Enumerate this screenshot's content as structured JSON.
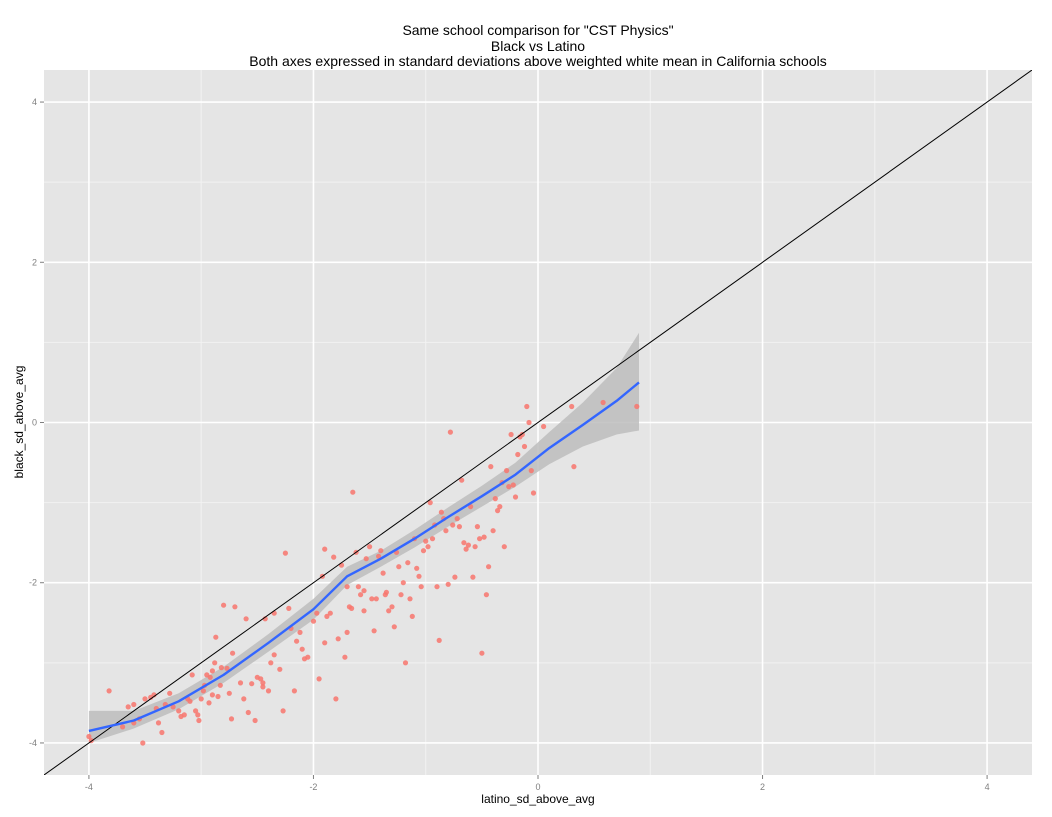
{
  "chart_data": {
    "type": "scatter",
    "title_lines": [
      "Same school comparison for \"CST Physics\"",
      "Black vs Latino",
      "Both axes expressed in standard deviations above weighted white mean in California schools"
    ],
    "xlabel": "latino_sd_above_avg",
    "ylabel": "black_sd_above_avg",
    "xlim": [
      -4.4,
      4.4
    ],
    "ylim": [
      -4.4,
      4.4
    ],
    "x_ticks": [
      -4,
      -2,
      0,
      2,
      4
    ],
    "y_ticks": [
      -4,
      -2,
      0,
      2,
      4
    ],
    "x_tick_labels": [
      "-4",
      "-2",
      "0",
      "2",
      "4"
    ],
    "y_tick_labels": [
      "-4",
      "-2",
      "0",
      "2",
      "4"
    ],
    "grid": true,
    "colors": {
      "panel": "#e5e5e5",
      "grid_major": "#ffffff",
      "grid_minor": "#f2f2f2",
      "points": "#f8766d",
      "smooth": "#3366ff",
      "ribbon": "#bdbdbd",
      "reference": "#000000"
    },
    "reference_line": {
      "slope": 1,
      "intercept": 0
    },
    "points": [
      [
        -4.0,
        -3.92
      ],
      [
        -3.98,
        -3.97
      ],
      [
        -3.82,
        -3.35
      ],
      [
        -3.7,
        -3.8
      ],
      [
        -3.65,
        -3.55
      ],
      [
        -3.6,
        -3.52
      ],
      [
        -3.55,
        -3.7
      ],
      [
        -3.52,
        -4.0
      ],
      [
        -3.5,
        -3.45
      ],
      [
        -3.45,
        -3.43
      ],
      [
        -3.42,
        -3.4
      ],
      [
        -3.4,
        -3.57
      ],
      [
        -3.38,
        -3.75
      ],
      [
        -3.35,
        -3.87
      ],
      [
        -3.32,
        -3.52
      ],
      [
        -3.28,
        -3.38
      ],
      [
        -3.25,
        -3.55
      ],
      [
        -3.2,
        -3.6
      ],
      [
        -3.18,
        -3.67
      ],
      [
        -3.15,
        -3.65
      ],
      [
        -3.12,
        -3.45
      ],
      [
        -3.1,
        -3.48
      ],
      [
        -3.08,
        -3.15
      ],
      [
        -3.05,
        -3.6
      ],
      [
        -3.03,
        -3.65
      ],
      [
        -3.02,
        -3.72
      ],
      [
        -3.0,
        -3.45
      ],
      [
        -2.98,
        -3.35
      ],
      [
        -2.97,
        -3.28
      ],
      [
        -2.95,
        -3.15
      ],
      [
        -2.93,
        -3.5
      ],
      [
        -2.92,
        -3.18
      ],
      [
        -2.9,
        -3.1
      ],
      [
        -2.88,
        -3.0
      ],
      [
        -2.87,
        -2.68
      ],
      [
        -2.85,
        -3.42
      ],
      [
        -2.83,
        -3.28
      ],
      [
        -2.82,
        -3.06
      ],
      [
        -2.8,
        -2.28
      ],
      [
        -2.77,
        -3.07
      ],
      [
        -2.75,
        -3.38
      ],
      [
        -2.73,
        -3.7
      ],
      [
        -2.72,
        -2.88
      ],
      [
        -2.7,
        -2.3
      ],
      [
        -2.65,
        -3.25
      ],
      [
        -2.62,
        -3.45
      ],
      [
        -2.58,
        -3.62
      ],
      [
        -2.55,
        -3.26
      ],
      [
        -2.52,
        -3.72
      ],
      [
        -2.5,
        -3.18
      ],
      [
        -2.47,
        -3.2
      ],
      [
        -2.45,
        -3.25
      ],
      [
        -2.43,
        -2.45
      ],
      [
        -2.4,
        -3.35
      ],
      [
        -2.38,
        -3.0
      ],
      [
        -2.35,
        -2.38
      ],
      [
        -2.3,
        -3.08
      ],
      [
        -2.27,
        -3.6
      ],
      [
        -2.25,
        -1.63
      ],
      [
        -2.22,
        -2.32
      ],
      [
        -2.2,
        -2.57
      ],
      [
        -2.17,
        -3.35
      ],
      [
        -2.15,
        -2.73
      ],
      [
        -2.12,
        -2.62
      ],
      [
        -2.1,
        -2.83
      ],
      [
        -2.08,
        -2.95
      ],
      [
        -2.05,
        -2.93
      ],
      [
        -2.0,
        -2.48
      ],
      [
        -1.97,
        -2.38
      ],
      [
        -1.95,
        -3.2
      ],
      [
        -1.92,
        -1.92
      ],
      [
        -1.9,
        -2.75
      ],
      [
        -1.88,
        -2.42
      ],
      [
        -1.85,
        -2.38
      ],
      [
        -1.82,
        -1.68
      ],
      [
        -1.8,
        -3.45
      ],
      [
        -1.78,
        -2.7
      ],
      [
        -1.75,
        -1.78
      ],
      [
        -1.72,
        -2.93
      ],
      [
        -1.7,
        -2.62
      ],
      [
        -1.68,
        -2.3
      ],
      [
        -1.66,
        -2.32
      ],
      [
        -1.65,
        -0.87
      ],
      [
        -1.62,
        -1.62
      ],
      [
        -1.6,
        -2.05
      ],
      [
        -1.58,
        -2.15
      ],
      [
        -1.55,
        -2.1
      ],
      [
        -1.53,
        -1.7
      ],
      [
        -1.5,
        -1.55
      ],
      [
        -1.48,
        -2.2
      ],
      [
        -1.46,
        -2.6
      ],
      [
        -1.44,
        -2.2
      ],
      [
        -1.42,
        -1.67
      ],
      [
        -1.4,
        -1.6
      ],
      [
        -1.38,
        -1.88
      ],
      [
        -1.36,
        -2.15
      ],
      [
        -1.35,
        -2.12
      ],
      [
        -1.33,
        -2.35
      ],
      [
        -1.3,
        -2.3
      ],
      [
        -1.28,
        -2.55
      ],
      [
        -1.26,
        -1.62
      ],
      [
        -1.24,
        -1.8
      ],
      [
        -1.22,
        -2.15
      ],
      [
        -1.2,
        -2.0
      ],
      [
        -1.18,
        -3.0
      ],
      [
        -1.16,
        -1.75
      ],
      [
        -1.14,
        -2.2
      ],
      [
        -1.12,
        -2.42
      ],
      [
        -1.1,
        -1.45
      ],
      [
        -1.08,
        -1.82
      ],
      [
        -1.06,
        -1.92
      ],
      [
        -1.04,
        -2.05
      ],
      [
        -1.02,
        -1.6
      ],
      [
        -1.0,
        -1.48
      ],
      [
        -0.98,
        -1.55
      ],
      [
        -0.96,
        -1.0
      ],
      [
        -0.94,
        -1.45
      ],
      [
        -0.92,
        -1.28
      ],
      [
        -0.9,
        -2.05
      ],
      [
        -0.88,
        -2.72
      ],
      [
        -0.86,
        -1.12
      ],
      [
        -0.84,
        -1.2
      ],
      [
        -0.82,
        -1.35
      ],
      [
        -0.8,
        -2.02
      ],
      [
        -0.78,
        -0.12
      ],
      [
        -0.76,
        -1.28
      ],
      [
        -0.74,
        -1.93
      ],
      [
        -0.72,
        -1.2
      ],
      [
        -0.7,
        -1.3
      ],
      [
        -0.68,
        -0.72
      ],
      [
        -0.66,
        -1.5
      ],
      [
        -0.64,
        -1.58
      ],
      [
        -0.62,
        -1.53
      ],
      [
        -0.6,
        -1.05
      ],
      [
        -0.58,
        -1.93
      ],
      [
        -0.56,
        -1.55
      ],
      [
        -0.54,
        -1.3
      ],
      [
        -0.52,
        -1.45
      ],
      [
        -0.5,
        -2.88
      ],
      [
        -0.48,
        -1.43
      ],
      [
        -0.46,
        -2.15
      ],
      [
        -0.44,
        -1.8
      ],
      [
        -0.42,
        -0.55
      ],
      [
        -0.4,
        -1.35
      ],
      [
        -0.38,
        -0.95
      ],
      [
        -0.36,
        -1.1
      ],
      [
        -0.34,
        -1.05
      ],
      [
        -0.32,
        -0.75
      ],
      [
        -0.3,
        -1.55
      ],
      [
        -0.28,
        -0.6
      ],
      [
        -0.26,
        -0.8
      ],
      [
        -0.24,
        -0.15
      ],
      [
        -0.22,
        -0.78
      ],
      [
        -0.2,
        -0.93
      ],
      [
        -0.18,
        -0.4
      ],
      [
        -0.16,
        -0.18
      ],
      [
        -0.14,
        -0.15
      ],
      [
        -0.12,
        -0.3
      ],
      [
        -0.1,
        0.2
      ],
      [
        -0.08,
        0.0
      ],
      [
        -0.06,
        -0.6
      ],
      [
        -0.04,
        -0.88
      ],
      [
        0.05,
        -0.05
      ],
      [
        0.3,
        0.2
      ],
      [
        0.32,
        -0.55
      ],
      [
        0.58,
        0.25
      ],
      [
        0.88,
        0.2
      ],
      [
        -3.6,
        -3.75
      ],
      [
        -2.45,
        -3.3
      ],
      [
        -1.7,
        -2.05
      ],
      [
        -2.6,
        -2.45
      ],
      [
        -2.9,
        -3.4
      ],
      [
        -1.55,
        -2.35
      ],
      [
        -2.35,
        -2.9
      ],
      [
        -1.9,
        -1.58
      ]
    ],
    "smooth": {
      "x": [
        -4.0,
        -3.6,
        -3.2,
        -2.8,
        -2.4,
        -2.0,
        -1.7,
        -1.4,
        -1.1,
        -0.8,
        -0.5,
        -0.2,
        0.1,
        0.4,
        0.7,
        0.9
      ],
      "y": [
        -3.85,
        -3.72,
        -3.48,
        -3.15,
        -2.75,
        -2.33,
        -1.92,
        -1.7,
        -1.45,
        -1.18,
        -0.92,
        -0.65,
        -0.32,
        -0.03,
        0.27,
        0.5
      ],
      "lower": [
        -4.0,
        -3.82,
        -3.58,
        -3.25,
        -2.86,
        -2.46,
        -2.03,
        -1.8,
        -1.56,
        -1.3,
        -1.05,
        -0.8,
        -0.52,
        -0.3,
        -0.15,
        -0.1
      ],
      "upper": [
        -3.6,
        -3.6,
        -3.38,
        -3.05,
        -2.64,
        -2.2,
        -1.8,
        -1.6,
        -1.34,
        -1.06,
        -0.79,
        -0.5,
        -0.12,
        0.25,
        0.68,
        1.12
      ]
    }
  }
}
